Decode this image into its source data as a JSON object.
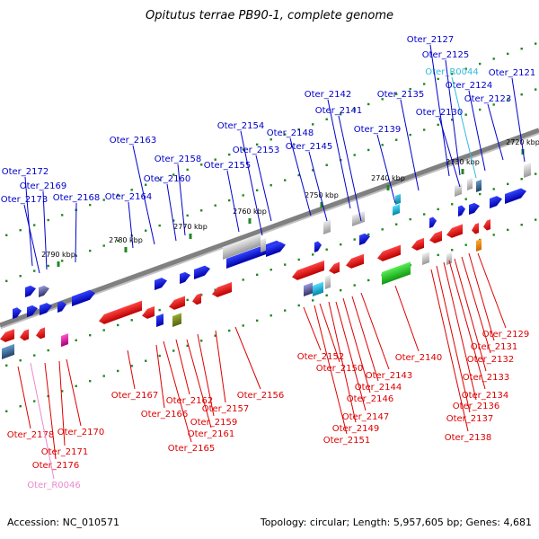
{
  "title": "Opitutus terrae PB90-1, complete genome",
  "footer": {
    "accession": "Accession: NC_010571",
    "topology": "Topology: circular; Length: 5,957,605 bp; Genes: 4,681"
  },
  "colors": {
    "forward_gene": "#0000ee",
    "reverse_gene": "#ee0000",
    "forward_label": "#0000cc",
    "reverse_label": "#dd0000",
    "trna_forward": "#33bbdd",
    "trna_reverse": "#ee88cc",
    "backbone": "#808080",
    "tick": "#228822"
  },
  "kbp_ticks": [
    "2720 kbp",
    "2730 kbp",
    "2740 kbp",
    "2750 kbp",
    "2760 kbp",
    "2770 kbp",
    "2780 kbp",
    "2790 kbp"
  ],
  "forward_genes": [
    "Oter_2121",
    "Oter_2123",
    "Oter_2124",
    "Oter_R0044",
    "Oter_2125",
    "Oter_2127",
    "Oter_2130",
    "Oter_2135",
    "Oter_2139",
    "Oter_2141",
    "Oter_2142",
    "Oter_2145",
    "Oter_2148",
    "Oter_2153",
    "Oter_2154",
    "Oter_2155",
    "Oter_2158",
    "Oter_2160",
    "Oter_2163",
    "Oter_2164",
    "Oter_2168",
    "Oter_2169",
    "Oter_2172",
    "Oter_2173"
  ],
  "reverse_genes": [
    "Oter_2129",
    "Oter_2131",
    "Oter_2132",
    "Oter_2133",
    "Oter_2134",
    "Oter_2136",
    "Oter_2137",
    "Oter_2138",
    "Oter_2140",
    "Oter_2143",
    "Oter_2144",
    "Oter_2146",
    "Oter_2147",
    "Oter_2149",
    "Oter_2150",
    "Oter_2151",
    "Oter_2152",
    "Oter_2156",
    "Oter_2157",
    "Oter_2159",
    "Oter_2161",
    "Oter_2162",
    "Oter_2165",
    "Oter_2166",
    "Oter_2167",
    "Oter_2170",
    "Oter_2171",
    "Oter_2176",
    "Oter_2178",
    "Oter_R0046"
  ]
}
